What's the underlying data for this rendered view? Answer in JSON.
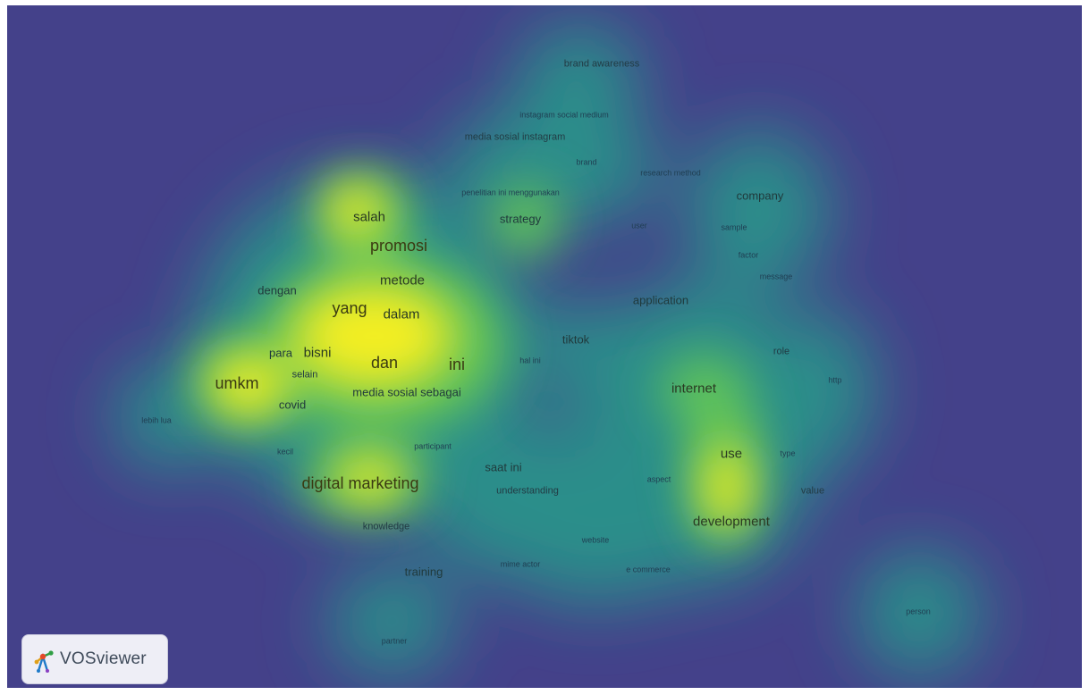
{
  "app": {
    "logo_text": "VOSviewer"
  },
  "colors": {
    "background": "#44418a",
    "low": "#2a8e8a",
    "mid": "#5ec25a",
    "high": "#f3ee20"
  },
  "terms": {
    "brand_awareness": "brand awareness",
    "instagram_social_medium": "instagram social medium",
    "media_sosial_instagram": "media sosial instagram",
    "brand": "brand",
    "research_method": "research method",
    "penelitian_ini_menggunakan": "penelitian ini menggunakan",
    "company": "company",
    "salah": "salah",
    "strategy": "strategy",
    "user": "user",
    "sample": "sample",
    "promosi": "promosi",
    "factor": "factor",
    "message": "message",
    "dengan": "dengan",
    "metode": "metode",
    "application": "application",
    "yang": "yang",
    "dalam": "dalam",
    "tiktok": "tiktok",
    "para": "para",
    "bisni": "bisni",
    "role": "role",
    "dan": "dan",
    "ini": "ini",
    "hal_ini": "hal ini",
    "selain": "selain",
    "umkm": "umkm",
    "http": "http",
    "internet": "internet",
    "media_sosial_sebagai": "media sosial sebagai",
    "covid": "covid",
    "lebih_lua": "lebih lua",
    "kecil": "kecil",
    "participant": "participant",
    "use": "use",
    "type": "type",
    "saat_ini": "saat ini",
    "aspect": "aspect",
    "digital_marketing": "digital marketing",
    "understanding": "understanding",
    "value": "value",
    "development": "development",
    "knowledge": "knowledge",
    "website": "website",
    "mime_actor": "mime actor",
    "training": "training",
    "e_commerce": "e commerce",
    "person": "person",
    "partner": "partner"
  }
}
